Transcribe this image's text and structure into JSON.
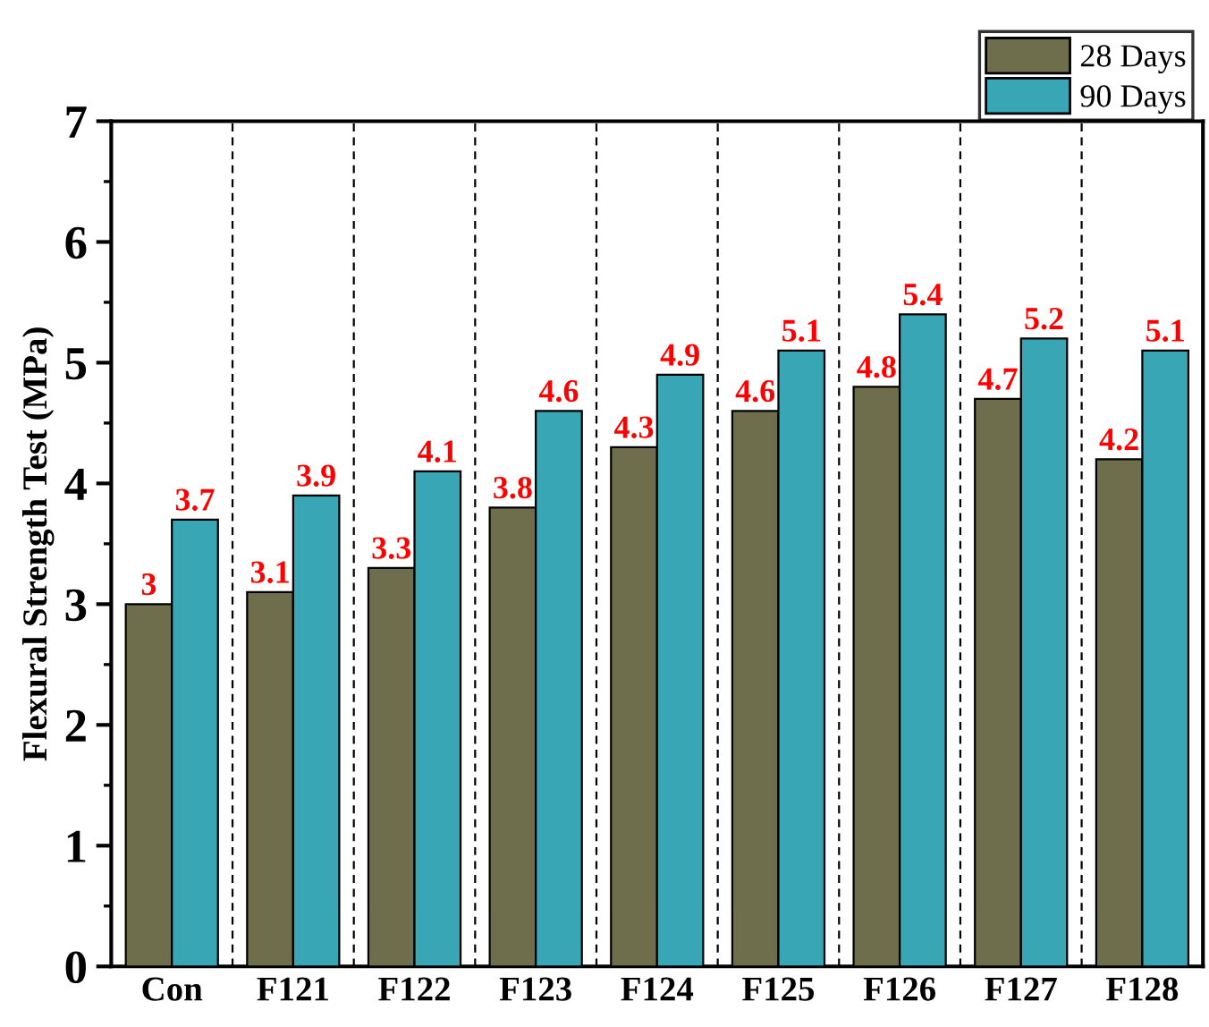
{
  "chart_data": {
    "type": "bar",
    "ylabel": "Flexural Strength Test (MPa)",
    "categories": [
      "Con",
      "F121",
      "F122",
      "F123",
      "F124",
      "F125",
      "F126",
      "F127",
      "F128"
    ],
    "series": [
      {
        "name": "28 Days",
        "color": "#6e6e4c",
        "values": [
          3,
          3.1,
          3.3,
          3.8,
          4.3,
          4.6,
          4.8,
          4.7,
          4.2
        ]
      },
      {
        "name": "90 Days",
        "color": "#38a6b5",
        "values": [
          3.7,
          3.9,
          4.1,
          4.6,
          4.9,
          5.1,
          5.4,
          5.2,
          5.1
        ]
      }
    ],
    "ylim": [
      0,
      7
    ],
    "yticks": [
      0,
      1,
      2,
      3,
      4,
      5,
      6,
      7
    ],
    "data_labels": true,
    "grid": "x",
    "legend": "top right"
  }
}
